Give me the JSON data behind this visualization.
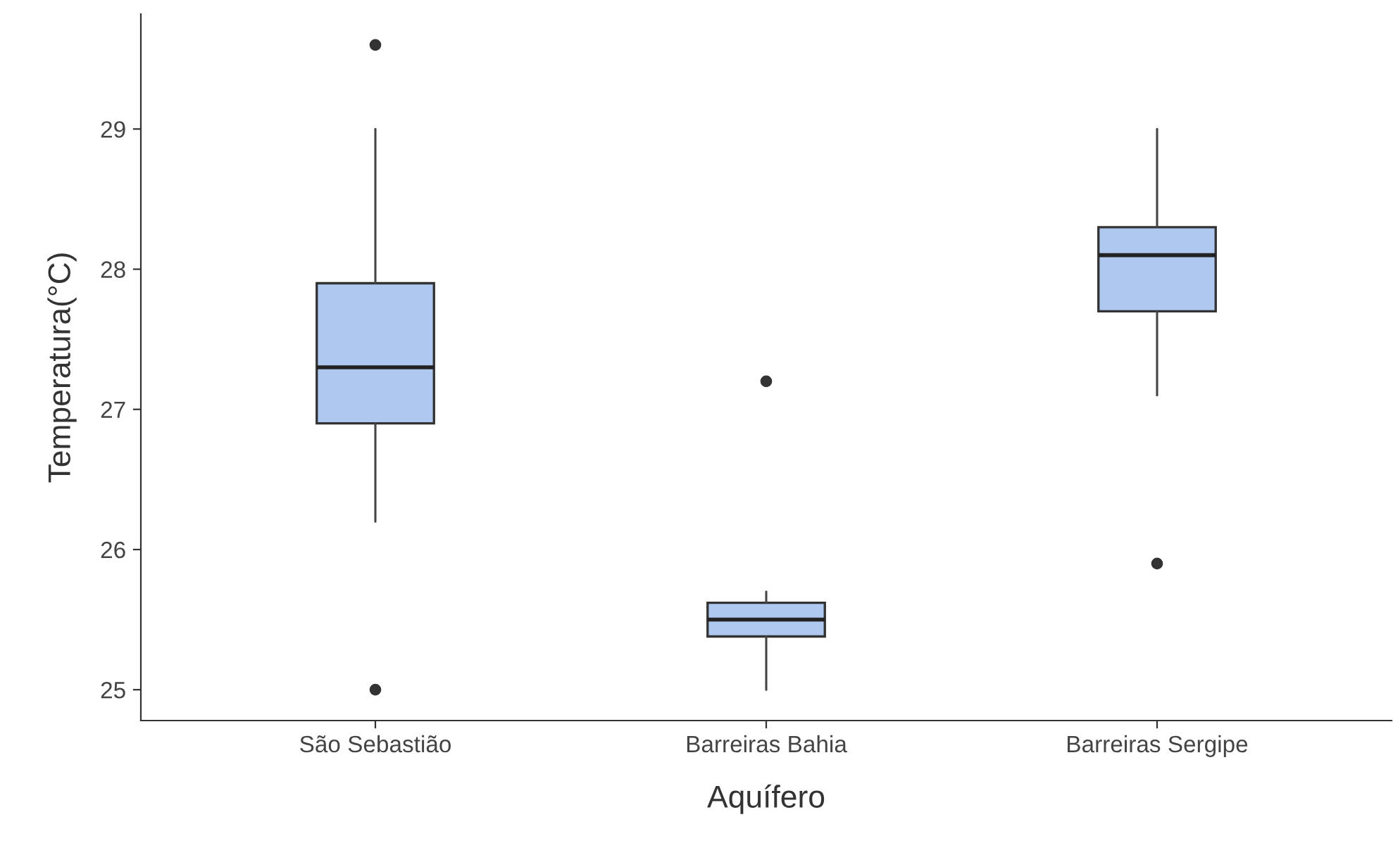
{
  "chart_data": {
    "type": "box",
    "xlabel": "Aquífero",
    "ylabel": "Temperatura(°C)",
    "categories": [
      "São Sebastião",
      "Barreiras Bahia",
      "Barreiras Sergipe"
    ],
    "boxes": [
      {
        "low": 26.2,
        "q1": 26.9,
        "median": 27.3,
        "q3": 27.9,
        "high": 29.0,
        "outliers": [
          29.6,
          25.0
        ]
      },
      {
        "low": 25.0,
        "q1": 25.38,
        "median": 25.5,
        "q3": 25.62,
        "high": 25.7,
        "outliers": [
          27.2
        ]
      },
      {
        "low": 27.1,
        "q1": 27.7,
        "median": 28.1,
        "q3": 28.3,
        "high": 29.0,
        "outliers": [
          25.9
        ]
      }
    ],
    "color": "#aec8f0",
    "ylim": [
      24.78,
      29.82
    ],
    "yticks": [
      25,
      26,
      27,
      28,
      29
    ],
    "grid": false
  }
}
